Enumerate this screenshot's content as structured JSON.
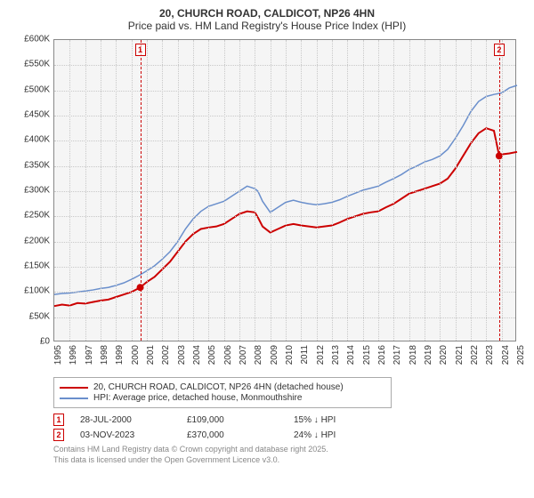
{
  "title": {
    "line1": "20, CHURCH ROAD, CALDICOT, NP26 4HN",
    "line2": "Price paid vs. HM Land Registry's House Price Index (HPI)"
  },
  "chart": {
    "type": "line",
    "background_color": "#f5f5f5",
    "grid_color": "#c8c8c8",
    "border_color": "#888888",
    "ylim": [
      0,
      600000
    ],
    "ytick_step": 50000,
    "yticks": [
      "£0",
      "£50K",
      "£100K",
      "£150K",
      "£200K",
      "£250K",
      "£300K",
      "£350K",
      "£400K",
      "£450K",
      "£500K",
      "£550K",
      "£600K"
    ],
    "xlim": [
      1995,
      2025
    ],
    "xticks": [
      "1995",
      "1996",
      "1997",
      "1998",
      "1999",
      "2000",
      "2001",
      "2002",
      "2003",
      "2004",
      "2005",
      "2006",
      "2007",
      "2008",
      "2009",
      "2010",
      "2011",
      "2012",
      "2013",
      "2014",
      "2015",
      "2016",
      "2017",
      "2018",
      "2019",
      "2020",
      "2021",
      "2022",
      "2023",
      "2024",
      "2025"
    ],
    "series": [
      {
        "name": "property",
        "label": "20, CHURCH ROAD, CALDICOT, NP26 4HN (detached house)",
        "color": "#cc0000",
        "width": 2,
        "data": [
          [
            1995,
            72000
          ],
          [
            1995.5,
            75000
          ],
          [
            1996,
            73000
          ],
          [
            1996.5,
            78000
          ],
          [
            1997,
            77000
          ],
          [
            1997.5,
            80000
          ],
          [
            1998,
            83000
          ],
          [
            1998.5,
            85000
          ],
          [
            1999,
            90000
          ],
          [
            1999.5,
            95000
          ],
          [
            2000,
            100000
          ],
          [
            2000.57,
            109000
          ],
          [
            2001,
            120000
          ],
          [
            2001.5,
            130000
          ],
          [
            2002,
            145000
          ],
          [
            2002.5,
            160000
          ],
          [
            2003,
            180000
          ],
          [
            2003.5,
            200000
          ],
          [
            2004,
            215000
          ],
          [
            2004.5,
            225000
          ],
          [
            2005,
            228000
          ],
          [
            2005.5,
            230000
          ],
          [
            2006,
            235000
          ],
          [
            2006.5,
            245000
          ],
          [
            2007,
            255000
          ],
          [
            2007.5,
            260000
          ],
          [
            2008,
            258000
          ],
          [
            2008.2,
            248000
          ],
          [
            2008.5,
            230000
          ],
          [
            2009,
            218000
          ],
          [
            2009.5,
            225000
          ],
          [
            2010,
            232000
          ],
          [
            2010.5,
            235000
          ],
          [
            2011,
            232000
          ],
          [
            2011.5,
            230000
          ],
          [
            2012,
            228000
          ],
          [
            2012.5,
            230000
          ],
          [
            2013,
            232000
          ],
          [
            2013.5,
            238000
          ],
          [
            2014,
            245000
          ],
          [
            2014.5,
            250000
          ],
          [
            2015,
            255000
          ],
          [
            2015.5,
            258000
          ],
          [
            2016,
            260000
          ],
          [
            2016.5,
            268000
          ],
          [
            2017,
            275000
          ],
          [
            2017.5,
            285000
          ],
          [
            2018,
            295000
          ],
          [
            2018.5,
            300000
          ],
          [
            2019,
            305000
          ],
          [
            2019.5,
            310000
          ],
          [
            2020,
            315000
          ],
          [
            2020.5,
            325000
          ],
          [
            2021,
            345000
          ],
          [
            2021.5,
            370000
          ],
          [
            2022,
            395000
          ],
          [
            2022.5,
            415000
          ],
          [
            2023,
            425000
          ],
          [
            2023.5,
            420000
          ],
          [
            2023.84,
            370000
          ],
          [
            2024,
            373000
          ],
          [
            2024.5,
            375000
          ],
          [
            2025,
            378000
          ]
        ]
      },
      {
        "name": "hpi",
        "label": "HPI: Average price, detached house, Monmouthshire",
        "color": "#6a8fcc",
        "width": 1.5,
        "data": [
          [
            1995,
            95000
          ],
          [
            1995.5,
            97000
          ],
          [
            1996,
            98000
          ],
          [
            1996.5,
            100000
          ],
          [
            1997,
            102000
          ],
          [
            1997.5,
            104000
          ],
          [
            1998,
            107000
          ],
          [
            1998.5,
            109000
          ],
          [
            1999,
            113000
          ],
          [
            1999.5,
            118000
          ],
          [
            2000,
            125000
          ],
          [
            2000.5,
            133000
          ],
          [
            2001,
            142000
          ],
          [
            2001.5,
            152000
          ],
          [
            2002,
            165000
          ],
          [
            2002.5,
            180000
          ],
          [
            2003,
            200000
          ],
          [
            2003.5,
            225000
          ],
          [
            2004,
            245000
          ],
          [
            2004.5,
            260000
          ],
          [
            2005,
            270000
          ],
          [
            2005.5,
            275000
          ],
          [
            2006,
            280000
          ],
          [
            2006.5,
            290000
          ],
          [
            2007,
            300000
          ],
          [
            2007.5,
            310000
          ],
          [
            2008,
            305000
          ],
          [
            2008.2,
            300000
          ],
          [
            2008.5,
            280000
          ],
          [
            2009,
            258000
          ],
          [
            2009.5,
            268000
          ],
          [
            2010,
            278000
          ],
          [
            2010.5,
            282000
          ],
          [
            2011,
            278000
          ],
          [
            2011.5,
            275000
          ],
          [
            2012,
            273000
          ],
          [
            2012.5,
            275000
          ],
          [
            2013,
            278000
          ],
          [
            2013.5,
            283000
          ],
          [
            2014,
            290000
          ],
          [
            2014.5,
            296000
          ],
          [
            2015,
            302000
          ],
          [
            2015.5,
            306000
          ],
          [
            2016,
            310000
          ],
          [
            2016.5,
            318000
          ],
          [
            2017,
            325000
          ],
          [
            2017.5,
            333000
          ],
          [
            2018,
            343000
          ],
          [
            2018.5,
            350000
          ],
          [
            2019,
            358000
          ],
          [
            2019.5,
            363000
          ],
          [
            2020,
            370000
          ],
          [
            2020.5,
            383000
          ],
          [
            2021,
            405000
          ],
          [
            2021.5,
            430000
          ],
          [
            2022,
            458000
          ],
          [
            2022.5,
            478000
          ],
          [
            2023,
            488000
          ],
          [
            2023.5,
            492000
          ],
          [
            2024,
            495000
          ],
          [
            2024.5,
            505000
          ],
          [
            2025,
            510000
          ]
        ]
      }
    ],
    "markers": [
      {
        "id": "1",
        "x": 2000.57,
        "y": 109000,
        "color": "#cc0000",
        "dot": true
      },
      {
        "id": "2",
        "x": 2023.84,
        "y": 370000,
        "color": "#cc0000",
        "dot": true
      }
    ]
  },
  "legend": {
    "rows": [
      {
        "color": "#cc0000",
        "label": "20, CHURCH ROAD, CALDICOT, NP26 4HN (detached house)"
      },
      {
        "color": "#6a8fcc",
        "label": "HPI: Average price, detached house, Monmouthshire"
      }
    ]
  },
  "events": [
    {
      "id": "1",
      "color": "#cc0000",
      "date": "28-JUL-2000",
      "price": "£109,000",
      "diff": "15% ↓ HPI"
    },
    {
      "id": "2",
      "color": "#cc0000",
      "date": "03-NOV-2023",
      "price": "£370,000",
      "diff": "24% ↓ HPI"
    }
  ],
  "footer": {
    "line1": "Contains HM Land Registry data © Crown copyright and database right 2025.",
    "line2": "This data is licensed under the Open Government Licence v3.0."
  }
}
